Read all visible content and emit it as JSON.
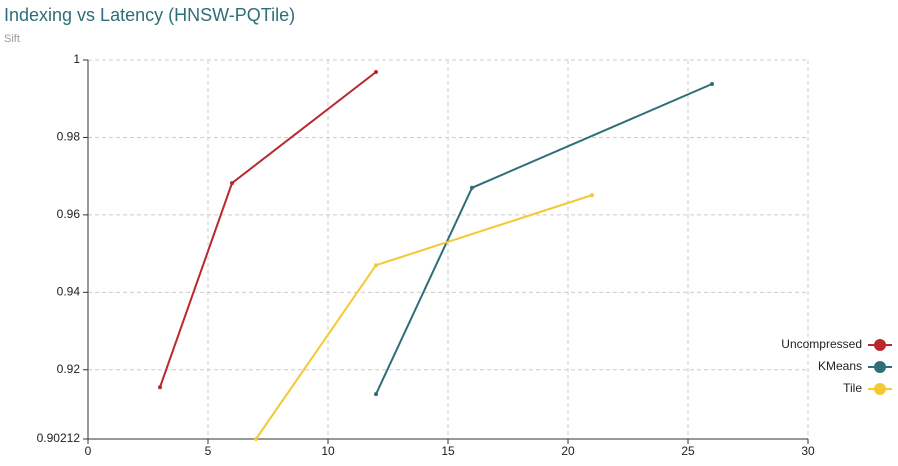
{
  "chart_data": {
    "type": "line",
    "title": "Indexing vs Latency (HNSW-PQTile)",
    "subtitle": "Sift",
    "series": [
      {
        "name": "Uncompressed",
        "color": "#b8282d",
        "x": [
          3,
          6,
          12
        ],
        "values": [
          0.9155,
          0.9682,
          0.9969
        ]
      },
      {
        "name": "KMeans",
        "color": "#2e6e78",
        "x": [
          12,
          16,
          26
        ],
        "values": [
          0.9137,
          0.967,
          0.9938
        ]
      },
      {
        "name": "Tile",
        "color": "#f5c833",
        "x": [
          7,
          12,
          21
        ],
        "values": [
          0.90212,
          0.947,
          0.9651
        ]
      }
    ],
    "xlim": [
      0,
      30
    ],
    "xticks": [
      0,
      5,
      10,
      15,
      20,
      25,
      30
    ],
    "ylim": [
      0.90212,
      1
    ],
    "yticks": [
      0.90212,
      0.92,
      0.94,
      0.96,
      0.98,
      1
    ],
    "grid": true,
    "legend": "right"
  }
}
